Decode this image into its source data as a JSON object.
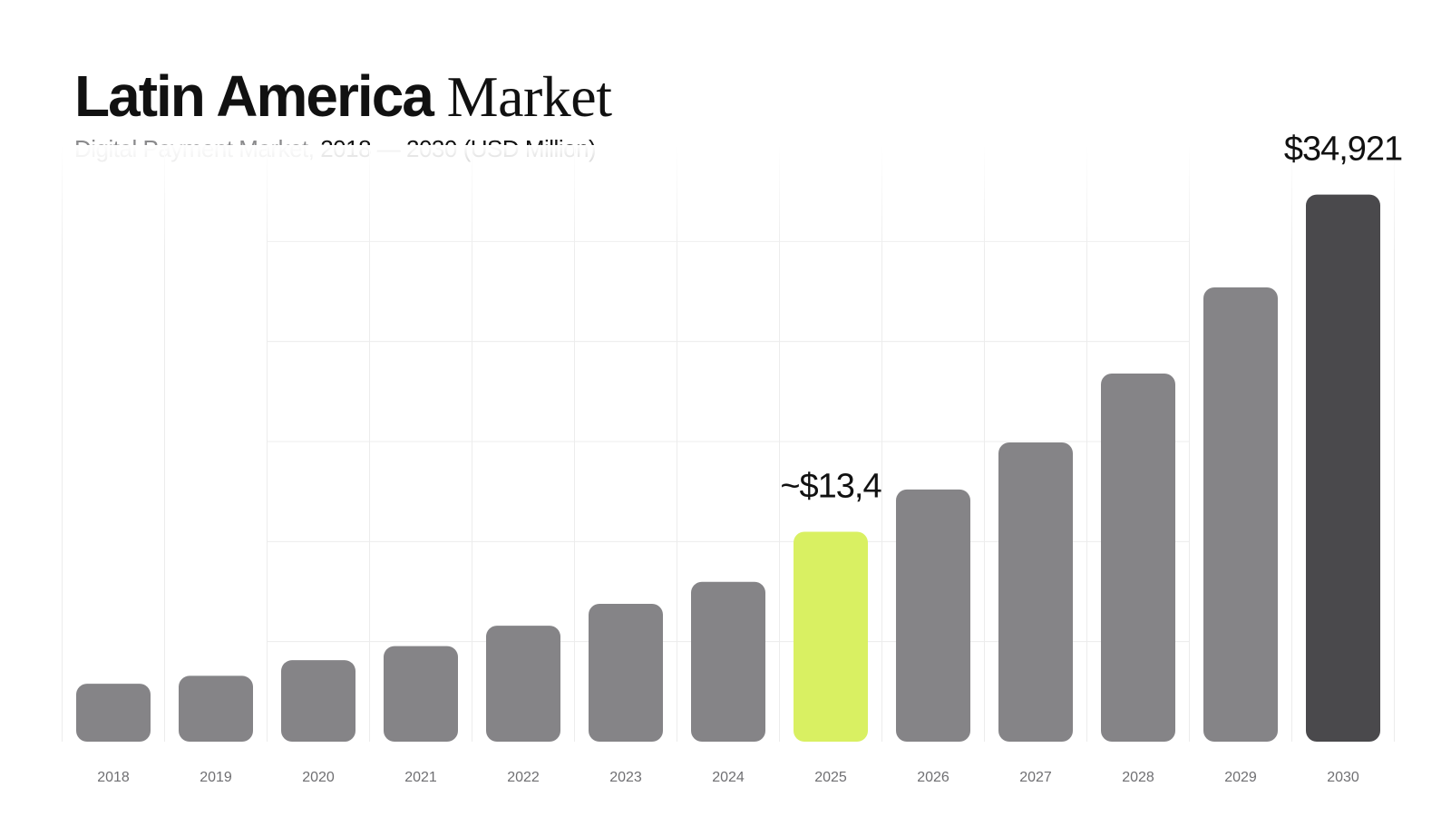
{
  "header": {
    "title_main": "Latin America",
    "title_serif": "Market",
    "subtitle_muted": "Digital Payment Market,",
    "subtitle_range": "2018 — 2030 (USD Million)"
  },
  "colors": {
    "bar_default": "#858487",
    "bar_highlight": "#d9f062",
    "bar_final": "#4a494c",
    "grid": "#ececec",
    "tick_label": "#6f6f72",
    "value_label": "#111111"
  },
  "chart_data": {
    "type": "bar",
    "title": "Latin America Market",
    "subtitle": "Digital Payment Market, 2018 — 2030 (USD Million)",
    "xlabel": "",
    "ylabel": "",
    "categories": [
      "2018",
      "2019",
      "2020",
      "2021",
      "2022",
      "2023",
      "2024",
      "2025",
      "2026",
      "2027",
      "2028",
      "2029",
      "2030"
    ],
    "values": [
      3700,
      4200,
      5200,
      6100,
      7400,
      8800,
      10200,
      13400,
      16100,
      19100,
      23500,
      29000,
      34921
    ],
    "ylim": [
      0,
      36000
    ],
    "grid": true,
    "highlight": [
      {
        "category": "2025",
        "label": "~$13,4",
        "style": "highlight"
      },
      {
        "category": "2030",
        "label": "$34,921",
        "style": "final"
      }
    ]
  }
}
